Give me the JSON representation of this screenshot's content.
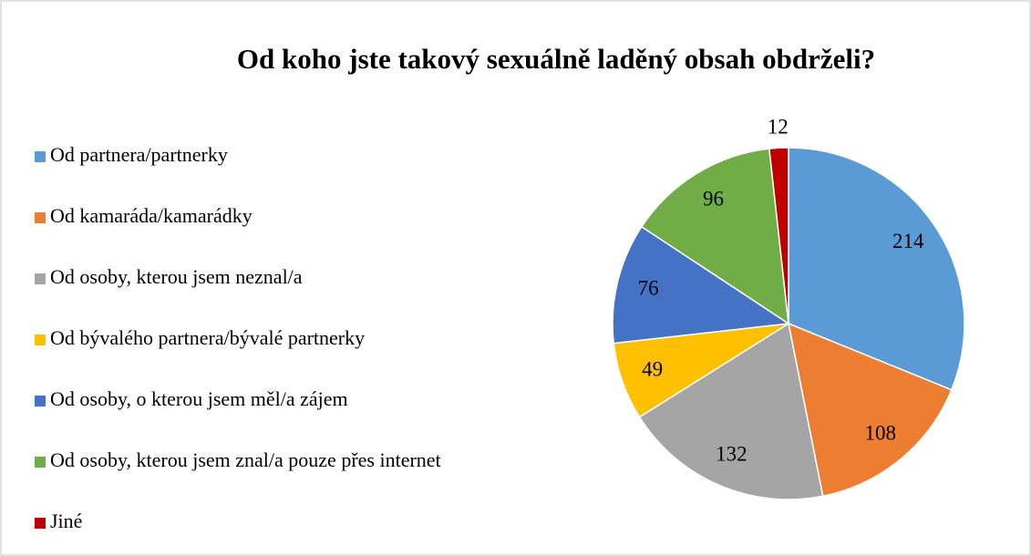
{
  "chart_data": {
    "type": "pie",
    "title": "Od koho jste takový sexuálně laděný obsah obdrželi?",
    "categories": [
      "Od partnera/partnerky",
      "Od kamaráda/kamarádky",
      "Od osoby, kterou jsem neznal/a",
      "Od bývalého partnera/bývalé partnerky",
      "Od osoby, o kterou jsem měl/a zájem",
      "Od osoby, kterou jsem znal/a pouze přes internet",
      "Jiné"
    ],
    "values": [
      214,
      108,
      132,
      49,
      76,
      96,
      12
    ],
    "colors": [
      "#5b9bd5",
      "#ed7d31",
      "#a5a5a5",
      "#ffc000",
      "#4472c4",
      "#70ad47",
      "#c00000"
    ],
    "legend": "left"
  }
}
